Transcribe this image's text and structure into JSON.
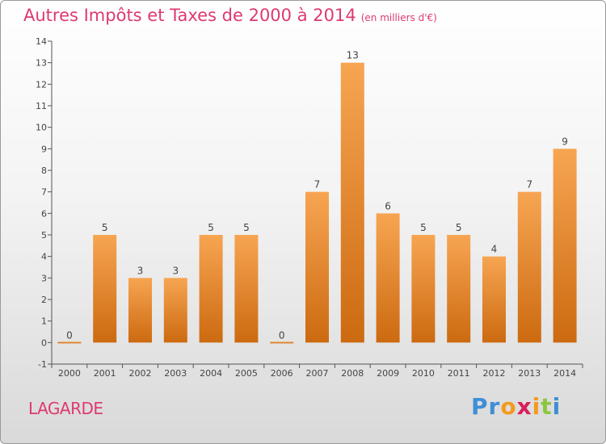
{
  "title": "Autres Impôts et Taxes de 2000 à 2014",
  "title_unit": "(en milliers d'€)",
  "place": "LAGARDE",
  "logo": {
    "text": "Proxiti",
    "letters": [
      {
        "ch": "P",
        "color": "#3e8fd6"
      },
      {
        "ch": "r",
        "color": "#3e8fd6"
      },
      {
        "ch": "o",
        "color": "#f39a1e"
      },
      {
        "ch": "x",
        "color": "#d81e5b"
      },
      {
        "ch": "i",
        "color": "#f39a1e"
      },
      {
        "ch": "t",
        "color": "#8cc63f"
      },
      {
        "ch": "i",
        "color": "#3e8fd6"
      }
    ]
  },
  "colors": {
    "bar_light": "#f7a552",
    "bar_dark": "#cc6a10",
    "title": "#de3a6e",
    "axis": "#555555"
  },
  "chart_data": {
    "type": "bar",
    "title": "Autres Impôts et Taxes de 2000 à 2014",
    "ylabel": "",
    "xlabel": "",
    "categories": [
      "2000",
      "2001",
      "2002",
      "2003",
      "2004",
      "2005",
      "2006",
      "2007",
      "2008",
      "2009",
      "2010",
      "2011",
      "2012",
      "2013",
      "2014"
    ],
    "values": [
      0,
      5,
      3,
      3,
      5,
      5,
      0,
      7,
      13,
      6,
      5,
      5,
      4,
      7,
      9
    ],
    "yticks": [
      "-1",
      "0",
      "1",
      "2",
      "3",
      "4",
      "5",
      "6",
      "7",
      "8",
      "9",
      "10",
      "11",
      "12",
      "13",
      "14"
    ],
    "ylim": [
      -1,
      14
    ],
    "grid": false,
    "legend": "none"
  }
}
